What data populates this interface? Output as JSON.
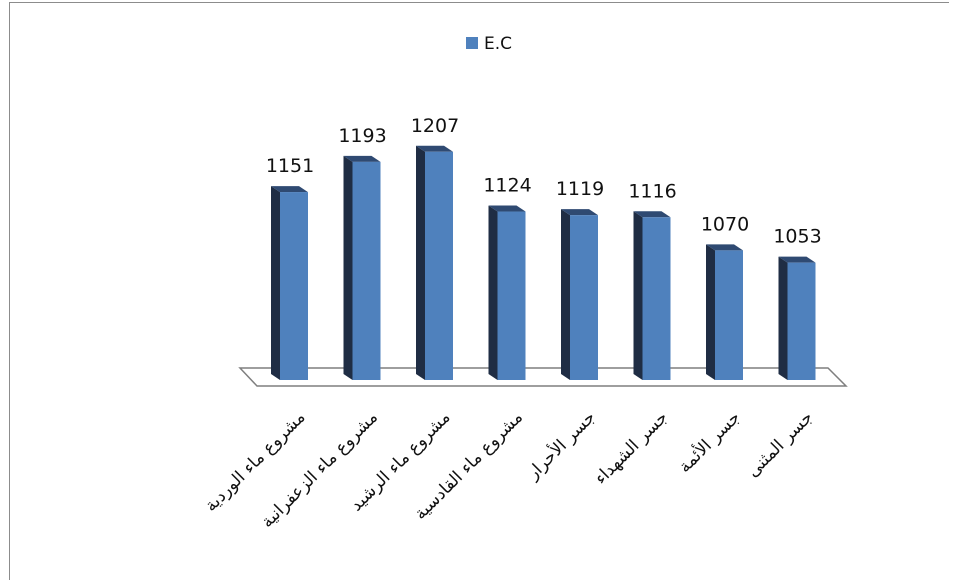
{
  "chart_data": {
    "type": "bar",
    "title": "",
    "xlabel": "",
    "ylabel": "",
    "categories": [
      "مشروع ماء الوردية",
      "مشروع ماء الزعفرانية",
      "مشروع ماء الرشيد",
      "مشروع ماء القادسية",
      "جسر الأحرار",
      "جسر الشهداء",
      "جسر الأئمة",
      "جسر المثنى"
    ],
    "series": [
      {
        "name": "E.C",
        "values": [
          1151,
          1193,
          1207,
          1124,
          1119,
          1116,
          1070,
          1053
        ]
      }
    ],
    "ylim": [
      890,
      1220
    ],
    "grid": false,
    "legend_position": "top-center",
    "style": "3d-column",
    "colors": {
      "front": "#4f81bd",
      "side": "#1f2d44",
      "top": "#2f4a72",
      "floor": "#ffffff",
      "floor_edge": "#7f7f7f"
    }
  }
}
